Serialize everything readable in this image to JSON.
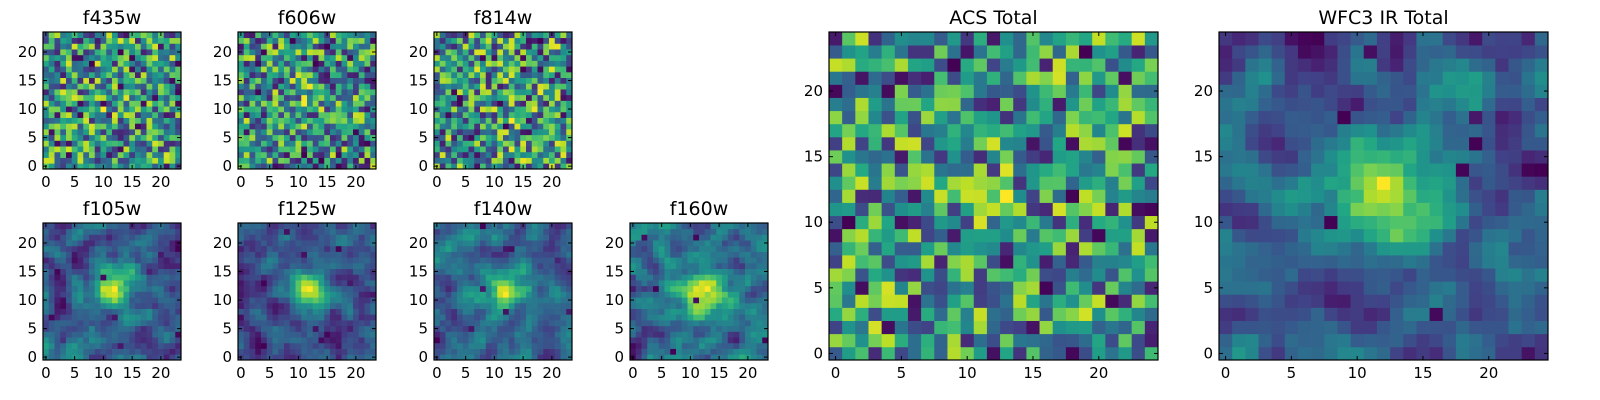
{
  "chart_data": {
    "type": "heatmap",
    "colormap": "viridis",
    "panels": [
      {
        "id": "f435w",
        "title": "f435w",
        "grid": 24,
        "smoothness": 0,
        "bias": 0.62,
        "xticks": [
          "0",
          "5",
          "10",
          "15",
          "20"
        ],
        "yticks": [
          "0",
          "5",
          "10",
          "15",
          "20"
        ],
        "xlim": [
          0,
          24
        ],
        "ylim": [
          0,
          24
        ]
      },
      {
        "id": "f606w",
        "title": "f606w",
        "grid": 24,
        "smoothness": 0,
        "bias": 0.6,
        "xticks": [
          "0",
          "5",
          "10",
          "15",
          "20"
        ],
        "yticks": [
          "0",
          "5",
          "10",
          "15",
          "20"
        ],
        "xlim": [
          0,
          24
        ],
        "ylim": [
          0,
          24
        ]
      },
      {
        "id": "f814w",
        "title": "f814w",
        "grid": 24,
        "smoothness": 0,
        "bias": 0.62,
        "xticks": [
          "0",
          "5",
          "10",
          "15",
          "20"
        ],
        "yticks": [
          "0",
          "5",
          "10",
          "15",
          "20"
        ],
        "xlim": [
          0,
          24
        ],
        "ylim": [
          0,
          24
        ]
      },
      {
        "id": "f105w",
        "title": "f105w",
        "grid": 24,
        "smoothness": 1,
        "bias": 0.5,
        "xticks": [
          "0",
          "5",
          "10",
          "15",
          "20"
        ],
        "yticks": [
          "0",
          "5",
          "10",
          "15",
          "20"
        ],
        "xlim": [
          0,
          24
        ],
        "ylim": [
          0,
          24
        ]
      },
      {
        "id": "f125w",
        "title": "f125w",
        "grid": 24,
        "smoothness": 1,
        "bias": 0.58,
        "xticks": [
          "0",
          "5",
          "10",
          "15",
          "20"
        ],
        "yticks": [
          "0",
          "5",
          "10",
          "15",
          "20"
        ],
        "xlim": [
          0,
          24
        ],
        "ylim": [
          0,
          24
        ]
      },
      {
        "id": "f140w",
        "title": "f140w",
        "grid": 24,
        "smoothness": 1,
        "bias": 0.56,
        "xticks": [
          "0",
          "5",
          "10",
          "15",
          "20"
        ],
        "yticks": [
          "0",
          "5",
          "10",
          "15",
          "20"
        ],
        "xlim": [
          0,
          24
        ],
        "ylim": [
          0,
          24
        ]
      },
      {
        "id": "f160w",
        "title": "f160w",
        "grid": 24,
        "smoothness": 1,
        "bias": 0.55,
        "xticks": [
          "0",
          "5",
          "10",
          "15",
          "20"
        ],
        "yticks": [
          "0",
          "5",
          "10",
          "15",
          "20"
        ],
        "xlim": [
          0,
          24
        ],
        "ylim": [
          0,
          24
        ]
      },
      {
        "id": "acs_total",
        "title": "ACS Total",
        "grid": 25,
        "smoothness": 0,
        "bias": 0.68,
        "xticks": [
          "0",
          "5",
          "10",
          "15",
          "20"
        ],
        "yticks": [
          "0",
          "5",
          "10",
          "15",
          "20"
        ],
        "xlim": [
          0,
          25
        ],
        "ylim": [
          0,
          25
        ]
      },
      {
        "id": "wfc3_ir_total",
        "title": "WFC3 IR Total",
        "grid": 25,
        "smoothness": 1,
        "bias": 0.5,
        "xticks": [
          "0",
          "5",
          "10",
          "15",
          "20"
        ],
        "yticks": [
          "0",
          "5",
          "10",
          "15",
          "20"
        ],
        "xlim": [
          0,
          25
        ],
        "ylim": [
          0,
          25
        ]
      }
    ],
    "central_source": {
      "center": [
        12,
        12
      ],
      "note_for_ir_bands": true
    }
  },
  "colors": {
    "low": "#440154",
    "mid": "#21918c",
    "high": "#fde725",
    "frame": "#000000"
  }
}
